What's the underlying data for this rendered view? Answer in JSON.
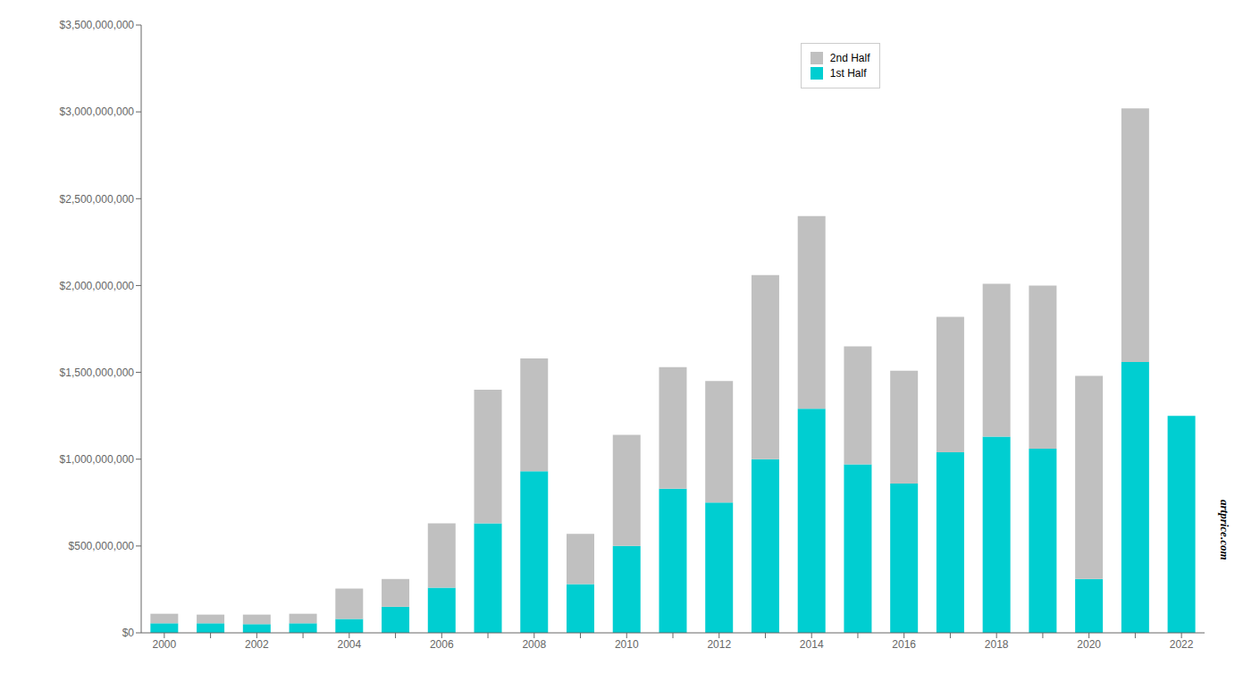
{
  "chart_data": {
    "type": "bar",
    "stacked": true,
    "grid": false,
    "legend": "upper right",
    "categories": [
      "2000",
      null,
      "2002",
      null,
      "2004",
      null,
      "2006",
      null,
      "2008",
      null,
      "2010",
      null,
      "2012",
      null,
      "2014",
      null,
      "2016",
      null,
      "2018",
      null,
      "2020",
      null,
      "2022"
    ],
    "series": [
      {
        "name": "1st Half",
        "color": "#00CED1",
        "values": [
          55000000,
          55000000,
          50000000,
          55000000,
          80000000,
          150000000,
          260000000,
          630000000,
          930000000,
          280000000,
          500000000,
          830000000,
          750000000,
          1000000000,
          1290000000,
          970000000,
          860000000,
          1040000000,
          1130000000,
          1060000000,
          310000000,
          1560000000,
          1250000000
        ]
      },
      {
        "name": "2nd Half",
        "color": "#C0C0C0",
        "values": [
          55000000,
          50000000,
          55000000,
          55000000,
          175000000,
          160000000,
          370000000,
          770000000,
          650000000,
          290000000,
          640000000,
          700000000,
          700000000,
          1060000000,
          1110000000,
          680000000,
          650000000,
          780000000,
          880000000,
          940000000,
          1170000000,
          1460000000,
          0
        ]
      }
    ],
    "ylim": [
      0,
      3500000000
    ],
    "yticks": [
      {
        "value": 0,
        "label": "$0"
      },
      {
        "value": 500000000,
        "label": "$500,000,000"
      },
      {
        "value": 1000000000,
        "label": "$1,000,000,000"
      },
      {
        "value": 1500000000,
        "label": "$1,500,000,000"
      },
      {
        "value": 2000000000,
        "label": "$2,000,000,000"
      },
      {
        "value": 2500000000,
        "label": "$2,500,000,000"
      },
      {
        "value": 3000000000,
        "label": "$3,000,000,000"
      },
      {
        "value": 3500000000,
        "label": "$3,500,000,000"
      }
    ],
    "annotations": [
      "artprice.com"
    ]
  }
}
